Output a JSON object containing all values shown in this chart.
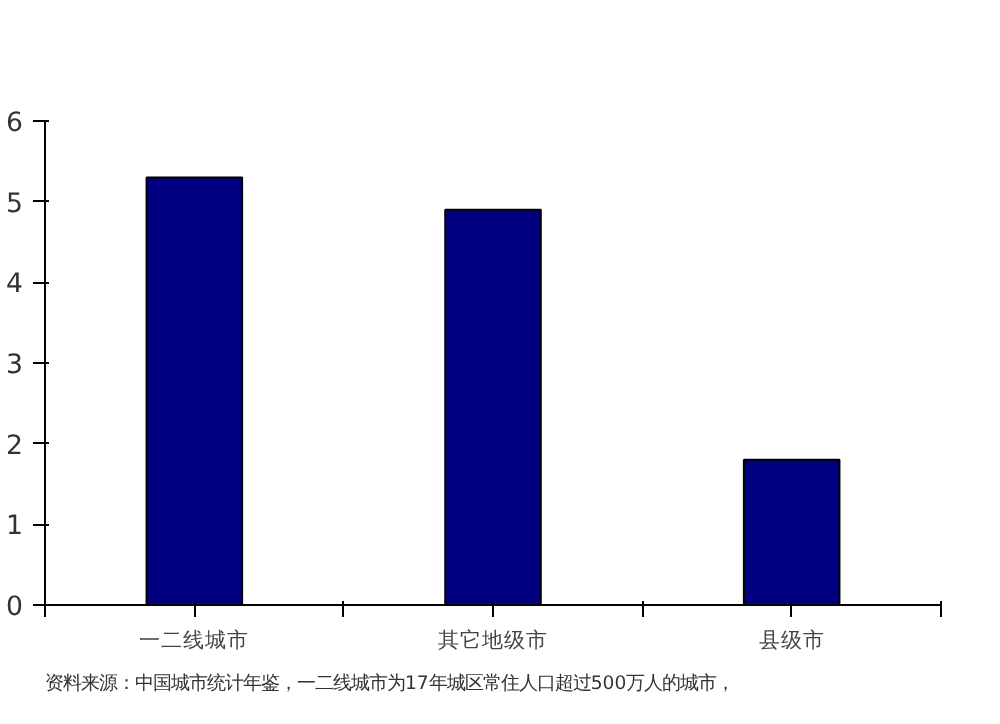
{
  "chart_data": {
    "type": "bar",
    "categories": [
      "一二线城市",
      "其它地级市",
      "县级市"
    ],
    "values": [
      5.3,
      4.9,
      1.8
    ],
    "color": "#000080",
    "ylim": [
      0,
      6
    ],
    "yticks": [
      0,
      1,
      2,
      3,
      4,
      5,
      6
    ],
    "grid": false,
    "annotations": [
      "资料来源：中国城市统计年鉴，一二线城市为17年城区常住人口超过500万人的城市，"
    ]
  }
}
